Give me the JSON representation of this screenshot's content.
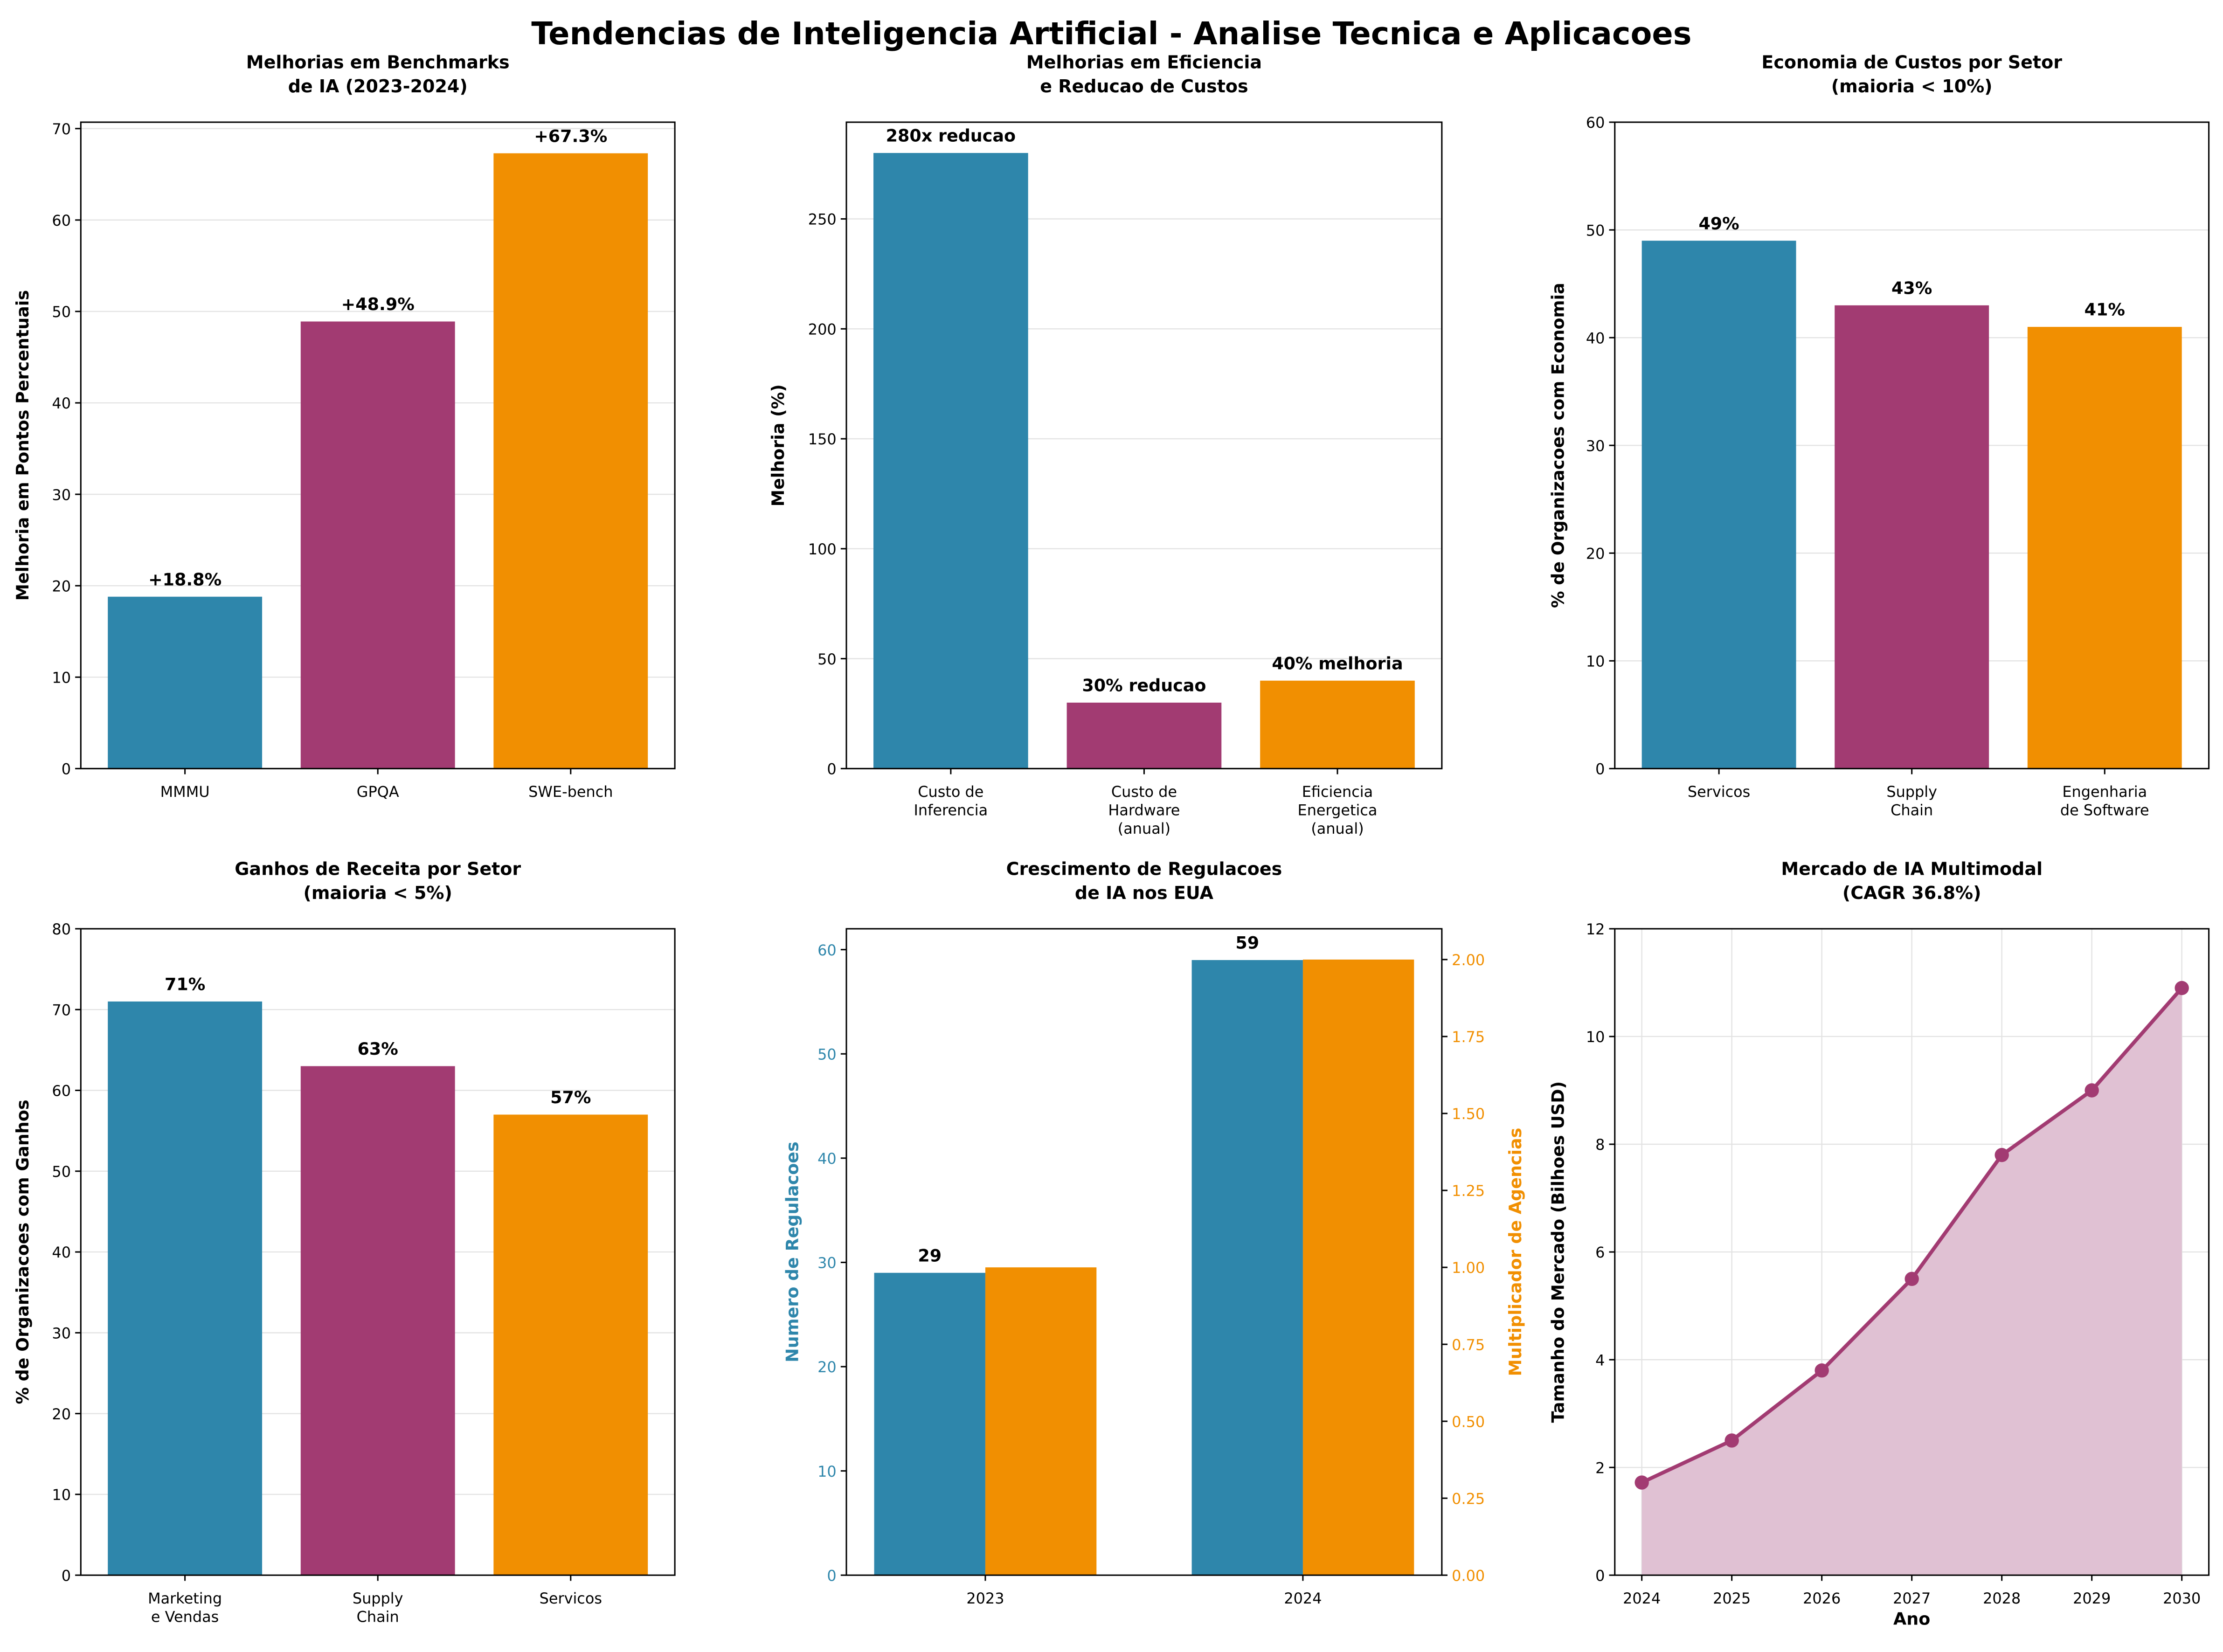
{
  "suptitle": "Tendencias de Inteligencia Artificial - Analise Tecnica e Aplicacoes",
  "colors": {
    "blue": "#2E86AB",
    "magenta": "#A23B72",
    "orange": "#F18F01",
    "fill": "#E0C1D3"
  },
  "chart_data": [
    {
      "type": "bar",
      "title": "Melhorias em Benchmarks\nde IA (2023-2024)",
      "ylabel": "Melhoria em Pontos Percentuais",
      "categories": [
        "MMMU",
        "GPQA",
        "SWE-bench"
      ],
      "values": [
        18.8,
        48.9,
        67.3
      ],
      "data_labels": [
        "+18.8%",
        "+48.9%",
        "+67.3%"
      ],
      "ylim": [
        0,
        70.7
      ],
      "yticks": [
        0,
        10,
        20,
        30,
        40,
        50,
        60,
        70
      ],
      "grid": "y"
    },
    {
      "type": "bar",
      "title": "Melhorias em Eficiencia\ne Reducao de Custos",
      "ylabel": "Melhoria (%)",
      "categories": [
        "Custo de\nInferencia",
        "Custo de\nHardware\n(anual)",
        "Eficiencia\nEnergetica\n(anual)"
      ],
      "values": [
        280,
        30,
        40
      ],
      "data_labels": [
        "280x reducao",
        "30% reducao",
        "40% melhoria"
      ],
      "ylim": [
        0,
        294
      ],
      "yticks": [
        0,
        50,
        100,
        150,
        200,
        250
      ],
      "grid": "y"
    },
    {
      "type": "bar",
      "title": "Economia de Custos por Setor\n(maioria < 10%)",
      "ylabel": "% de Organizacoes com Economia",
      "categories": [
        "Servicos",
        "Supply\nChain",
        "Engenharia\nde Software"
      ],
      "values": [
        49,
        43,
        41
      ],
      "data_labels": [
        "49%",
        "43%",
        "41%"
      ],
      "ylim": [
        0,
        60
      ],
      "yticks": [
        0,
        10,
        20,
        30,
        40,
        50,
        60
      ],
      "grid": "y"
    },
    {
      "type": "bar",
      "title": "Ganhos de Receita por Setor\n(maioria < 5%)",
      "ylabel": "% de Organizacoes com Ganhos",
      "categories": [
        "Marketing\ne Vendas",
        "Supply\nChain",
        "Servicos"
      ],
      "values": [
        71,
        63,
        57
      ],
      "data_labels": [
        "71%",
        "63%",
        "57%"
      ],
      "ylim": [
        0,
        80
      ],
      "yticks": [
        0,
        10,
        20,
        30,
        40,
        50,
        60,
        70,
        80
      ],
      "grid": "y"
    },
    {
      "type": "bar",
      "title": "Crescimento de Regulacoes\nde IA nos EUA",
      "ylabel": "Numero de Regulacoes",
      "y2label": "Multiplicador de Agencias",
      "categories": [
        "2023",
        "2024"
      ],
      "series": [
        {
          "axis": "left",
          "values": [
            29,
            59
          ],
          "data_labels": [
            "29",
            "59"
          ]
        },
        {
          "axis": "right",
          "values": [
            1.0,
            2.0
          ]
        }
      ],
      "ylim": [
        0,
        62
      ],
      "yticks": [
        0,
        10,
        20,
        30,
        40,
        50,
        60
      ],
      "y2lim": [
        0,
        2.1
      ],
      "y2ticks": [
        "0.00",
        "0.25",
        "0.50",
        "0.75",
        "1.00",
        "1.25",
        "1.50",
        "1.75",
        "2.00"
      ],
      "grid": "none"
    },
    {
      "type": "area",
      "title": "Mercado de IA Multimodal\n(CAGR 36.8%)",
      "xlabel": "Ano",
      "ylabel": "Tamanho do Mercado (Bilhoes USD)",
      "x": [
        2024,
        2025,
        2026,
        2027,
        2028,
        2029,
        2030
      ],
      "values": [
        1.72,
        2.5,
        3.8,
        5.5,
        7.8,
        9.0,
        10.9
      ],
      "xlim": [
        2023.7,
        2030.3
      ],
      "ylim": [
        0,
        12
      ],
      "yticks": [
        0,
        2,
        4,
        6,
        8,
        10,
        12
      ],
      "grid": "both"
    }
  ]
}
